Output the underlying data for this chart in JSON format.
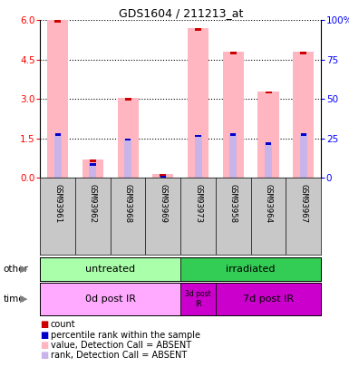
{
  "title": "GDS1604 / 211213_at",
  "samples": [
    "GSM93961",
    "GSM93962",
    "GSM93968",
    "GSM93969",
    "GSM93973",
    "GSM93958",
    "GSM93964",
    "GSM93967"
  ],
  "bar_heights_pink": [
    6.0,
    0.7,
    3.05,
    0.15,
    5.7,
    4.8,
    3.3,
    4.8
  ],
  "rank_heights_lavender": [
    1.7,
    0.55,
    1.5,
    0.08,
    1.65,
    1.7,
    1.35,
    1.7
  ],
  "count_red_h": [
    6.0,
    0.7,
    3.05,
    0.15,
    5.7,
    4.8,
    3.3,
    4.8
  ],
  "rank_blue_h": [
    1.7,
    0.55,
    1.5,
    0.08,
    1.65,
    1.7,
    1.35,
    1.7
  ],
  "ylim_left": [
    0,
    6
  ],
  "ylim_right": [
    0,
    100
  ],
  "yticks_left": [
    0,
    1.5,
    3.0,
    4.5,
    6.0
  ],
  "yticks_right": [
    0,
    25,
    50,
    75,
    100
  ],
  "pink_color": "#FFB6C1",
  "lavender_color": "#C8B4E8",
  "red_color": "#CC0000",
  "blue_color": "#0000CC",
  "untreated_color": "#AAFFAA",
  "irradiated_color": "#33CC55",
  "time0d_color": "#FFAAFF",
  "time3d_color": "#CC00CC",
  "time7d_color": "#CC00CC",
  "legend_items": [
    {
      "color": "#CC0000",
      "label": "count"
    },
    {
      "color": "#0000CC",
      "label": "percentile rank within the sample"
    },
    {
      "color": "#FFB6C1",
      "label": "value, Detection Call = ABSENT"
    },
    {
      "color": "#C8B4E8",
      "label": "rank, Detection Call = ABSENT"
    }
  ],
  "bar_width": 0.6,
  "sample_panel_bg": "#C8C8C8",
  "right_ytick_labels": [
    "0",
    "25",
    "50",
    "75",
    "100%"
  ]
}
